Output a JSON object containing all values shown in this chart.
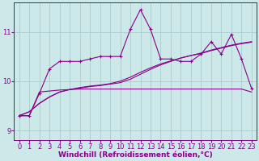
{
  "x_values": [
    0,
    1,
    2,
    3,
    4,
    5,
    6,
    7,
    8,
    9,
    10,
    11,
    12,
    13,
    14,
    15,
    16,
    17,
    18,
    19,
    20,
    21,
    22,
    23
  ],
  "line_marked": [
    9.3,
    9.3,
    9.75,
    10.25,
    10.4,
    10.4,
    10.4,
    10.45,
    10.5,
    10.5,
    10.5,
    11.05,
    11.45,
    11.05,
    10.45,
    10.45,
    10.4,
    10.4,
    10.55,
    10.8,
    10.55,
    10.95,
    10.45,
    9.85
  ],
  "line_slope_up": [
    9.3,
    9.38,
    9.55,
    9.68,
    9.78,
    9.83,
    9.86,
    9.89,
    9.91,
    9.94,
    9.97,
    10.04,
    10.14,
    10.24,
    10.33,
    10.4,
    10.47,
    10.52,
    10.57,
    10.63,
    10.68,
    10.73,
    10.77,
    10.8
  ],
  "line_flat": [
    9.3,
    9.3,
    9.78,
    9.8,
    9.82,
    9.83,
    9.84,
    9.84,
    9.84,
    9.84,
    9.84,
    9.84,
    9.84,
    9.84,
    9.84,
    9.84,
    9.84,
    9.84,
    9.84,
    9.84,
    9.84,
    9.84,
    9.84,
    9.78
  ],
  "line_slope_up2": [
    9.3,
    9.38,
    9.55,
    9.68,
    9.78,
    9.83,
    9.87,
    9.9,
    9.92,
    9.95,
    10.0,
    10.08,
    10.18,
    10.27,
    10.35,
    10.41,
    10.47,
    10.52,
    10.56,
    10.62,
    10.67,
    10.72,
    10.76,
    10.79
  ],
  "bg_color": "#cce8e8",
  "grid_color": "#aacccc",
  "xlabel": "Windchill (Refroidissement éolien,°C)",
  "ylim": [
    8.8,
    11.6
  ],
  "xlim": [
    -0.5,
    23.5
  ],
  "yticks": [
    9,
    10,
    11
  ],
  "xticks": [
    0,
    1,
    2,
    3,
    4,
    5,
    6,
    7,
    8,
    9,
    10,
    11,
    12,
    13,
    14,
    15,
    16,
    17,
    18,
    19,
    20,
    21,
    22,
    23
  ],
  "xlabel_fontsize": 6.5,
  "tick_fontsize": 6,
  "line_color": "#880088"
}
